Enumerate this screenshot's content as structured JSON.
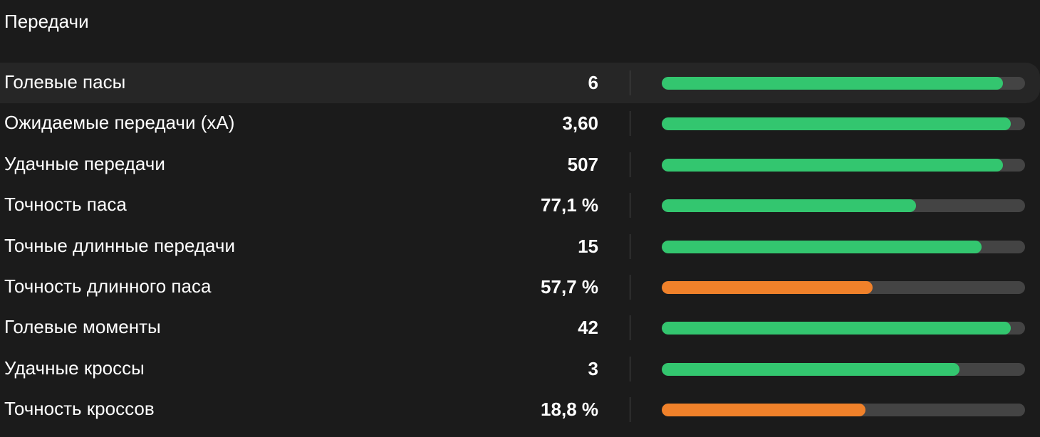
{
  "section": {
    "title": "Передачи"
  },
  "colors": {
    "good": "#33c66f",
    "average": "#f0812a",
    "track": "#444444",
    "background": "#1b1b1b"
  },
  "stats": [
    {
      "label": "Голевые пасы",
      "value": "6",
      "fill_fraction": 0.94,
      "level": "good",
      "highlighted": true
    },
    {
      "label": "Ожидаемые передачи (xA)",
      "value": "3,60",
      "fill_fraction": 0.96,
      "level": "good",
      "highlighted": false
    },
    {
      "label": "Удачные передачи",
      "value": "507",
      "fill_fraction": 0.94,
      "level": "good",
      "highlighted": false
    },
    {
      "label": "Точность паса",
      "value": "77,1 %",
      "fill_fraction": 0.7,
      "level": "good",
      "highlighted": false
    },
    {
      "label": "Точные длинные передачи",
      "value": "15",
      "fill_fraction": 0.88,
      "level": "good",
      "highlighted": false
    },
    {
      "label": "Точность длинного паса",
      "value": "57,7 %",
      "fill_fraction": 0.58,
      "level": "average",
      "highlighted": false
    },
    {
      "label": "Голевые моменты",
      "value": "42",
      "fill_fraction": 0.96,
      "level": "good",
      "highlighted": false
    },
    {
      "label": "Удачные кроссы",
      "value": "3",
      "fill_fraction": 0.82,
      "level": "good",
      "highlighted": false
    },
    {
      "label": "Точность кроссов",
      "value": "18,8 %",
      "fill_fraction": 0.56,
      "level": "average",
      "highlighted": false
    }
  ]
}
